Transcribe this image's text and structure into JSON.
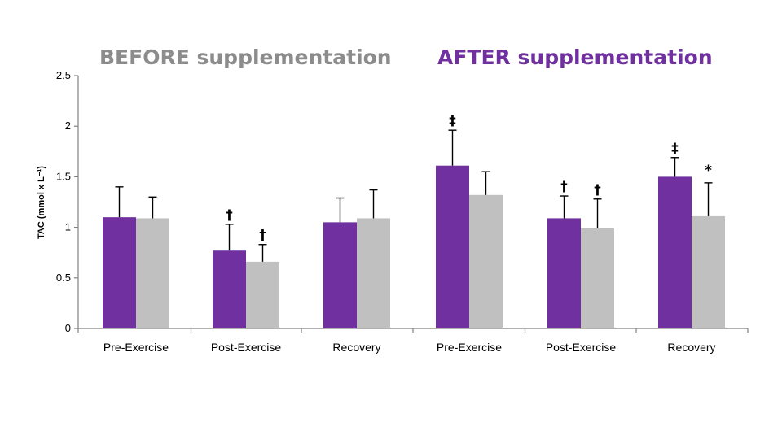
{
  "chart_data": {
    "type": "bar",
    "ylabel": "TAC (mmol x L⁻¹)",
    "ylim": [
      0,
      2.5
    ],
    "yticks": [
      "0",
      "0.5",
      "1",
      "1.5",
      "2",
      "2.5"
    ],
    "grid": false,
    "groups": [
      {
        "title": "BEFORE supplementation",
        "title_color": "#8c8c8c"
      },
      {
        "title": "AFTER supplementation",
        "title_color": "#7030a0"
      }
    ],
    "categories": [
      "Pre-Exercise",
      "Post-Exercise",
      "Recovery",
      "Pre-Exercise",
      "Post-Exercise",
      "Recovery"
    ],
    "series": [
      {
        "color": "#7030a0",
        "values": [
          1.1,
          0.77,
          1.05,
          1.61,
          1.09,
          1.5
        ],
        "errors": [
          0.3,
          0.26,
          0.24,
          0.35,
          0.22,
          0.19
        ],
        "annotations": [
          "",
          "†",
          "",
          "‡",
          "†",
          "‡"
        ]
      },
      {
        "color": "#c0c0c0",
        "values": [
          1.09,
          0.66,
          1.09,
          1.32,
          0.99,
          1.11
        ],
        "errors": [
          0.21,
          0.17,
          0.28,
          0.23,
          0.29,
          0.33
        ],
        "annotations": [
          "",
          "†",
          "",
          "",
          "†",
          "*"
        ]
      }
    ]
  }
}
